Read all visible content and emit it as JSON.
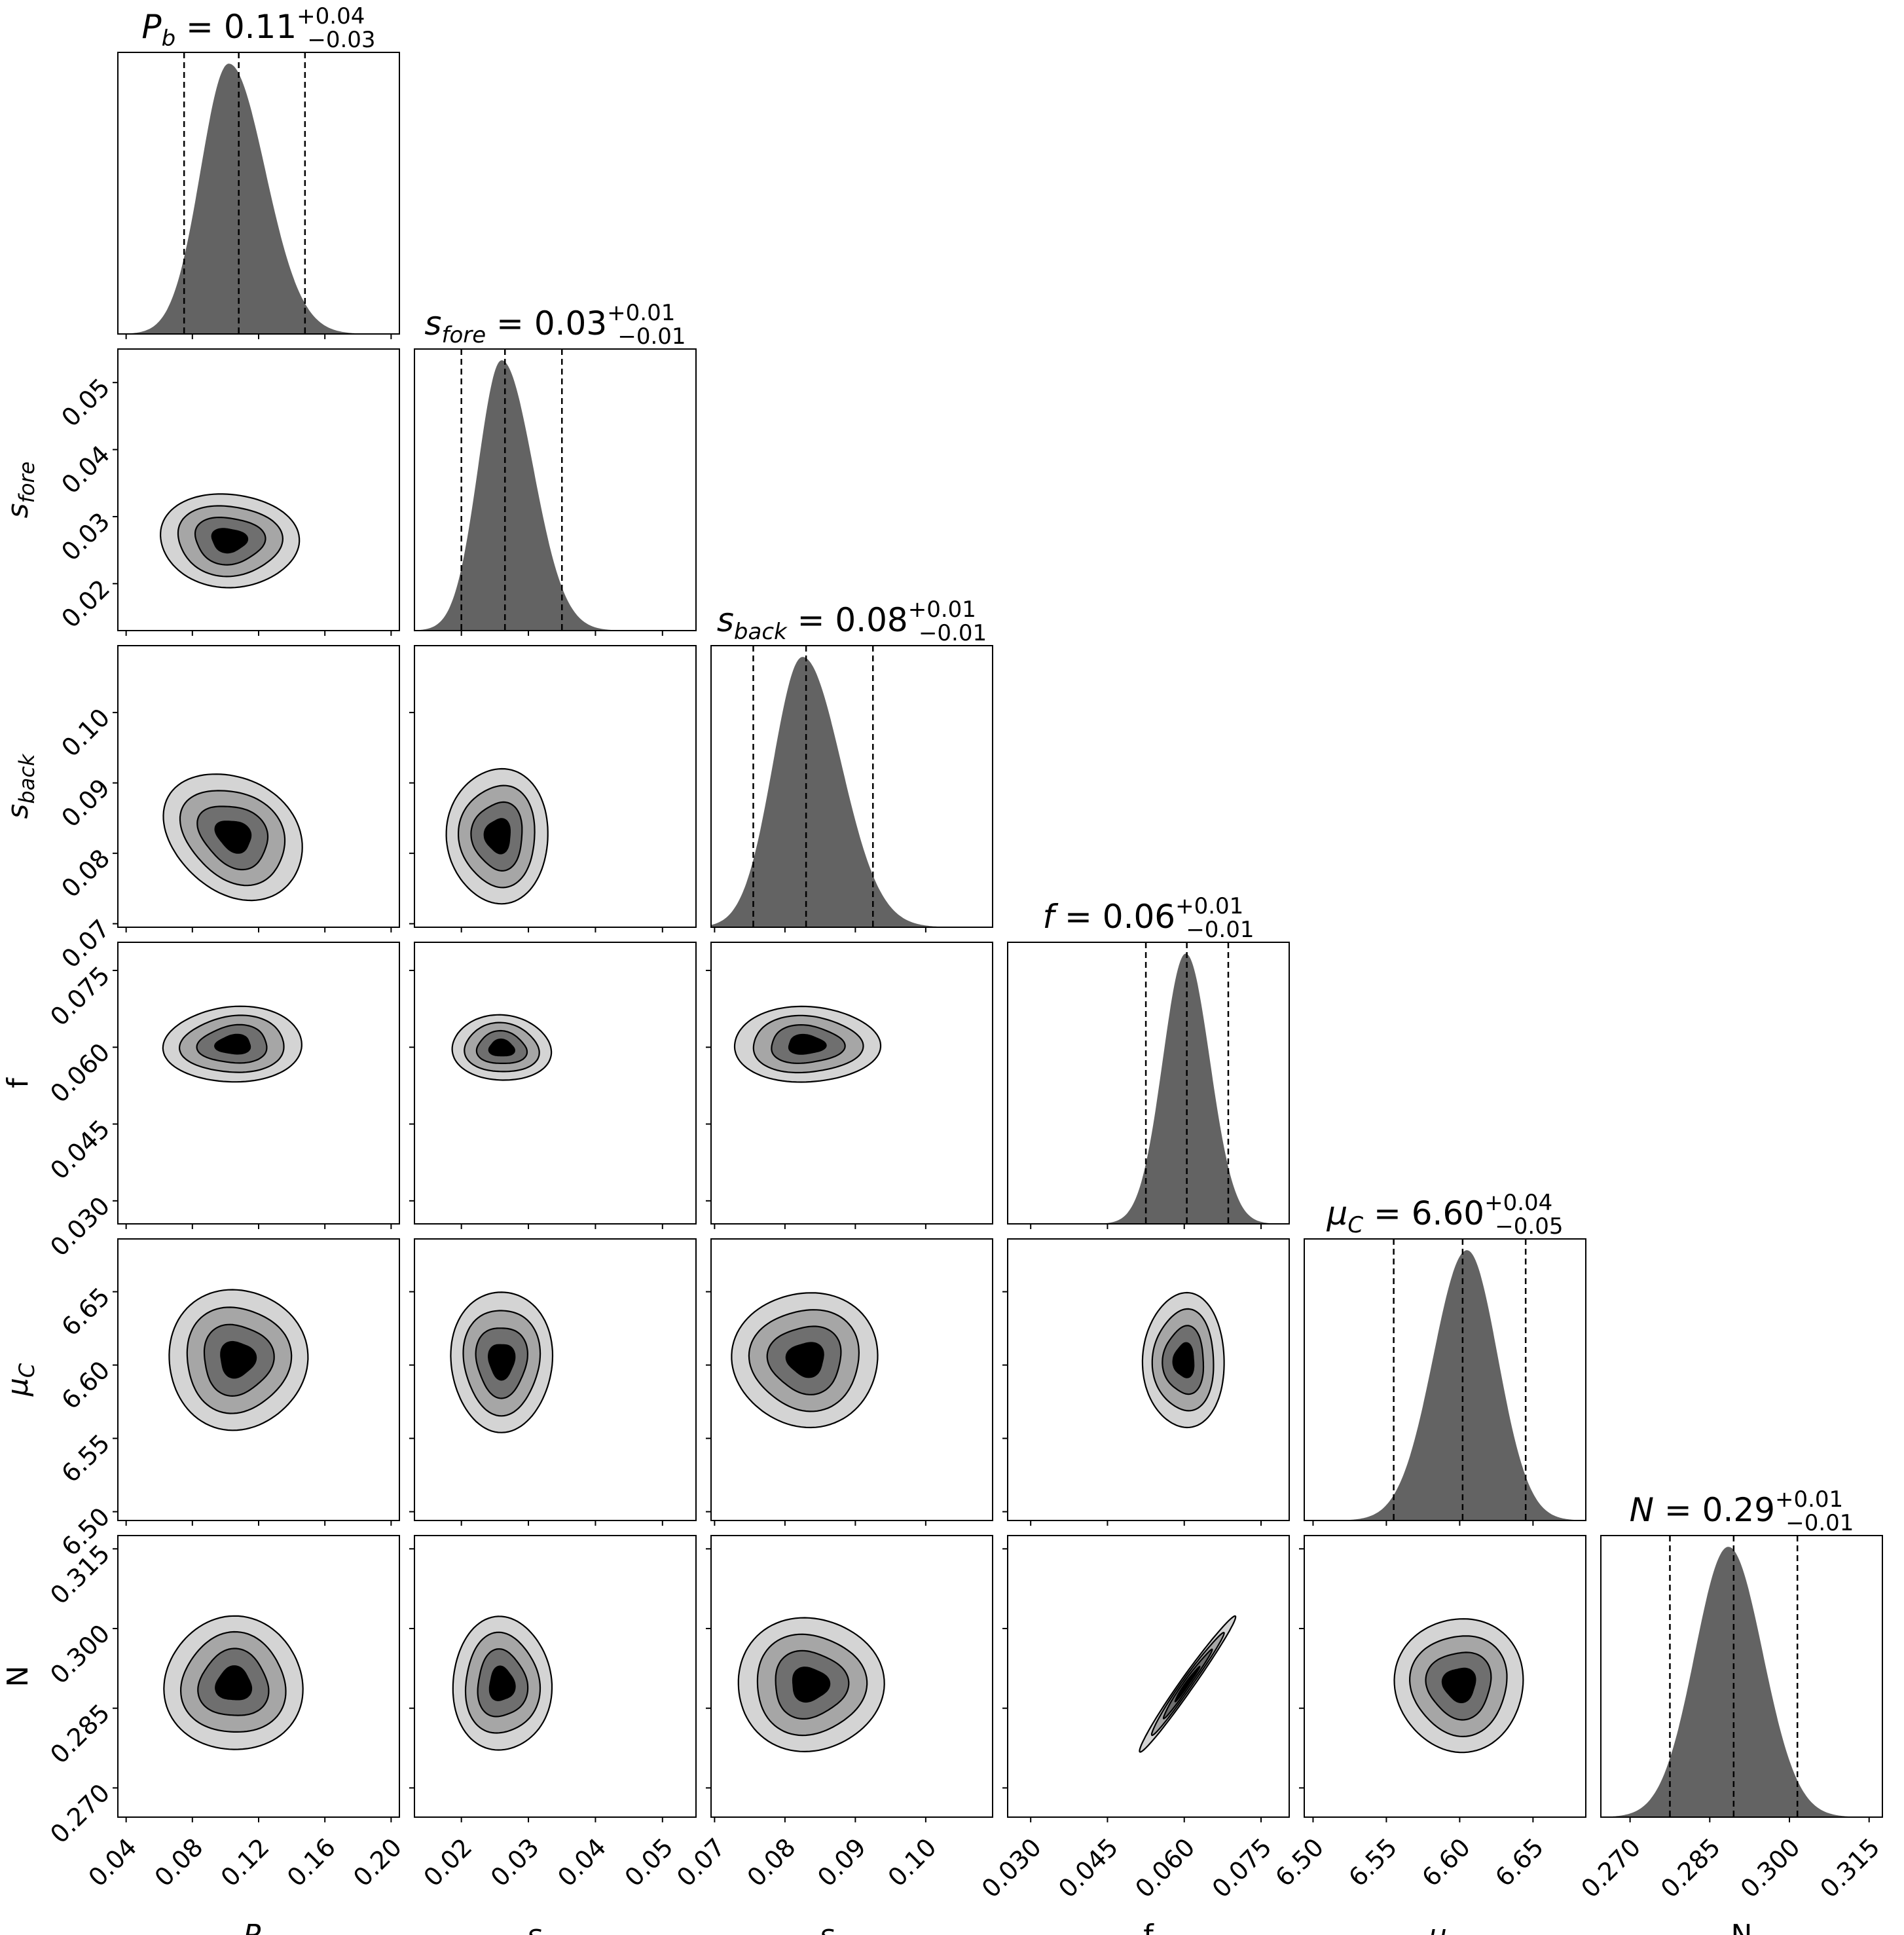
{
  "chart_data": {
    "type": "corner",
    "parameters": [
      {
        "key": "Pb",
        "label_main": "P",
        "label_sub": "b",
        "lim": [
          0.035,
          0.205
        ],
        "ticks": [
          0.04,
          0.08,
          0.12,
          0.16,
          0.2
        ],
        "tick_labels": [
          "0.04",
          "0.08",
          "0.12",
          "0.16",
          "0.20"
        ],
        "peak": 0.102,
        "q16": 0.075,
        "median": 0.108,
        "q84": 0.148,
        "sigma_left": 0.017,
        "sigma_right": 0.022,
        "title": {
          "name_main": "P",
          "name_sub": "b",
          "value": "0.11",
          "plus": "+0.04",
          "minus": "−0.03"
        }
      },
      {
        "key": "sfore",
        "label_main": "s",
        "label_sub": "fore",
        "lim": [
          0.013,
          0.055
        ],
        "ticks": [
          0.02,
          0.03,
          0.04,
          0.05
        ],
        "tick_labels": [
          "0.02",
          "0.03",
          "0.04",
          "0.05"
        ],
        "peak": 0.026,
        "q16": 0.02,
        "median": 0.0265,
        "q84": 0.035,
        "sigma_left": 0.0035,
        "sigma_right": 0.0047,
        "title": {
          "name_main": "s",
          "name_sub": "fore",
          "value": "0.03",
          "plus": "+0.01",
          "minus": "−0.01"
        }
      },
      {
        "key": "sback",
        "label_main": "s",
        "label_sub": "back",
        "lim": [
          0.0695,
          0.1095
        ],
        "ticks": [
          0.07,
          0.08,
          0.09,
          0.1
        ],
        "tick_labels": [
          "0.07",
          "0.08",
          "0.09",
          "0.10"
        ],
        "peak": 0.0825,
        "q16": 0.0755,
        "median": 0.083,
        "q84": 0.0925,
        "sigma_left": 0.0042,
        "sigma_right": 0.0055,
        "title": {
          "name_main": "s",
          "name_sub": "back",
          "value": "0.08",
          "plus": "+0.01",
          "minus": "−0.01"
        }
      },
      {
        "key": "f",
        "label_main": "f",
        "label_sub": "",
        "lim": [
          0.0255,
          0.0805
        ],
        "ticks": [
          0.03,
          0.045,
          0.06,
          0.075
        ],
        "tick_labels": [
          "0.030",
          "0.045",
          "0.060",
          "0.075"
        ],
        "peak": 0.0603,
        "q16": 0.0525,
        "median": 0.0605,
        "q84": 0.0686,
        "sigma_left": 0.0045,
        "sigma_right": 0.0047,
        "title": {
          "name_main": "f",
          "name_sub": "",
          "value": "0.06",
          "plus": "+0.01",
          "minus": "−0.01"
        }
      },
      {
        "key": "muC",
        "label_main": "μ",
        "label_sub": "C",
        "lim": [
          6.494,
          6.686
        ],
        "ticks": [
          6.5,
          6.55,
          6.6,
          6.65
        ],
        "tick_labels": [
          "6.50",
          "6.55",
          "6.60",
          "6.65"
        ],
        "peak": 6.605,
        "q16": 6.555,
        "median": 6.602,
        "q84": 6.645,
        "sigma_left": 0.023,
        "sigma_right": 0.021,
        "title": {
          "name_main": "μ",
          "name_sub": "C",
          "value": "6.60",
          "plus": "+0.04",
          "minus": "−0.05"
        }
      },
      {
        "key": "N",
        "label_main": "N",
        "label_sub": "",
        "lim": [
          0.2645,
          0.3175
        ],
        "ticks": [
          0.27,
          0.285,
          0.3,
          0.315
        ],
        "tick_labels": [
          "0.270",
          "0.285",
          "0.300",
          "0.315"
        ],
        "peak": 0.2885,
        "q16": 0.2775,
        "median": 0.2895,
        "q84": 0.3015,
        "sigma_left": 0.0063,
        "sigma_right": 0.0065,
        "title": {
          "name_main": "N",
          "name_sub": "",
          "value": "0.29",
          "plus": "+0.01",
          "minus": "−0.01"
        }
      }
    ],
    "contours": [
      {
        "row": 1,
        "col": 0,
        "center": [
          0.102,
          0.0265
        ],
        "spread": [
          0.021,
          0.0035
        ],
        "corr": -0.05
      },
      {
        "row": 2,
        "col": 0,
        "center": [
          0.105,
          0.0825
        ],
        "spread": [
          0.021,
          0.0045
        ],
        "corr": -0.25
      },
      {
        "row": 2,
        "col": 1,
        "center": [
          0.0255,
          0.0825
        ],
        "spread": [
          0.0038,
          0.0048
        ],
        "corr": 0.0
      },
      {
        "row": 3,
        "col": 0,
        "center": [
          0.105,
          0.0605
        ],
        "spread": [
          0.021,
          0.0037
        ],
        "corr": 0.05
      },
      {
        "row": 3,
        "col": 1,
        "center": [
          0.026,
          0.0598
        ],
        "spread": [
          0.0037,
          0.0032
        ],
        "corr": -0.05
      },
      {
        "row": 3,
        "col": 2,
        "center": [
          0.083,
          0.0605
        ],
        "spread": [
          0.0052,
          0.0037
        ],
        "corr": 0.0
      },
      {
        "row": 4,
        "col": 0,
        "center": [
          0.107,
          6.604
        ],
        "spread": [
          0.021,
          0.024
        ],
        "corr": 0.0
      },
      {
        "row": 4,
        "col": 1,
        "center": [
          0.026,
          6.603
        ],
        "spread": [
          0.0038,
          0.024
        ],
        "corr": 0.0
      },
      {
        "row": 4,
        "col": 2,
        "center": [
          0.083,
          6.604
        ],
        "spread": [
          0.0052,
          0.023
        ],
        "corr": 0.0
      },
      {
        "row": 4,
        "col": 3,
        "center": [
          0.06,
          6.603
        ],
        "spread": [
          0.004,
          0.023
        ],
        "corr": 0.0
      },
      {
        "row": 5,
        "col": 0,
        "center": [
          0.105,
          0.2895
        ],
        "spread": [
          0.021,
          0.0063
        ],
        "corr": 0.0
      },
      {
        "row": 5,
        "col": 1,
        "center": [
          0.026,
          0.2895
        ],
        "spread": [
          0.0037,
          0.0063
        ],
        "corr": 0.0
      },
      {
        "row": 5,
        "col": 2,
        "center": [
          0.0835,
          0.2895
        ],
        "spread": [
          0.0052,
          0.0063
        ],
        "corr": 0.0
      },
      {
        "row": 5,
        "col": 3,
        "center": [
          0.0605,
          0.2895
        ],
        "spread": [
          0.0047,
          0.0064
        ],
        "corr": 0.985
      },
      {
        "row": 5,
        "col": 4,
        "center": [
          6.6,
          0.2895
        ],
        "spread": [
          0.022,
          0.0063
        ],
        "corr": 0.0
      }
    ],
    "contour_levels": [
      0.5,
      1.0,
      1.5,
      2.0
    ],
    "contour_fills": [
      "#d4d4d4",
      "#a6a6a6",
      "#6f6f6f",
      "#000000"
    ],
    "hist_fill": "#636363",
    "quantile_line_style": "dashed"
  }
}
